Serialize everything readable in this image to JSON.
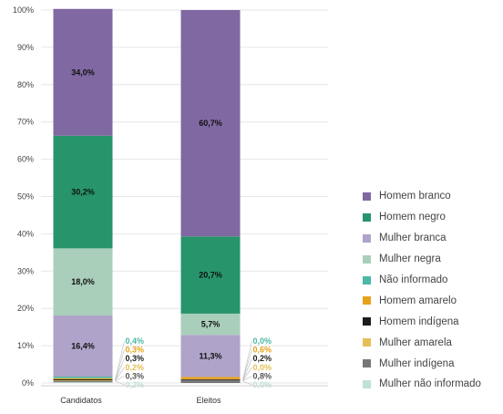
{
  "chart_data": {
    "type": "bar",
    "stacked": true,
    "categories": [
      "Candidatos",
      "Eleitos"
    ],
    "y_ticks": [
      "0%",
      "10%",
      "20%",
      "30%",
      "40%",
      "50%",
      "60%",
      "70%",
      "80%",
      "90%",
      "100%"
    ],
    "ylim": [
      0,
      100
    ],
    "grid": true,
    "legend_position": "right",
    "series": [
      {
        "name": "Mulher não informado",
        "color": "#bfe3d3",
        "values": [
          0.2,
          0.0
        ],
        "labels": [
          "0,2%",
          "0,0%"
        ]
      },
      {
        "name": "Mulher indígena",
        "color": "#777777",
        "values": [
          0.3,
          0.8
        ],
        "labels": [
          "0,3%",
          "0,8%"
        ]
      },
      {
        "name": "Mulher amarela",
        "color": "#e3c158",
        "values": [
          0.2,
          0.0
        ],
        "labels": [
          "0,2%",
          "0,0%"
        ]
      },
      {
        "name": "Homem indígena",
        "color": "#1c1c1c",
        "values": [
          0.3,
          0.2
        ],
        "labels": [
          "0,3%",
          "0,2%"
        ]
      },
      {
        "name": "Homem amarelo",
        "color": "#e8a21a",
        "values": [
          0.3,
          0.6
        ],
        "labels": [
          "0,3%",
          "0,6%"
        ]
      },
      {
        "name": "Não informado",
        "color": "#4cb8a6",
        "values": [
          0.4,
          0.0
        ],
        "labels": [
          "0,4%",
          "0,0%"
        ]
      },
      {
        "name": "Mulher branca",
        "color": "#b0a3c9",
        "values": [
          16.4,
          11.3
        ],
        "labels": [
          "16,4%",
          "11,3%"
        ]
      },
      {
        "name": "Mulher negra",
        "color": "#a9cfba",
        "values": [
          18.0,
          5.7
        ],
        "labels": [
          "18,0%",
          "5,7%"
        ]
      },
      {
        "name": "Homem negro",
        "color": "#27946b",
        "values": [
          30.2,
          20.7
        ],
        "labels": [
          "30,2%",
          "20,7%"
        ]
      },
      {
        "name": "Homem branco",
        "color": "#8068a2",
        "values": [
          34.0,
          60.7
        ],
        "labels": [
          "34,0%",
          "60,7%"
        ]
      }
    ],
    "legend_order": [
      "Homem branco",
      "Homem negro",
      "Mulher branca",
      "Mulher negra",
      "Não informado",
      "Homem amarelo",
      "Homem indígena",
      "Mulher amarela",
      "Mulher indígena",
      "Mulher não informado"
    ]
  }
}
